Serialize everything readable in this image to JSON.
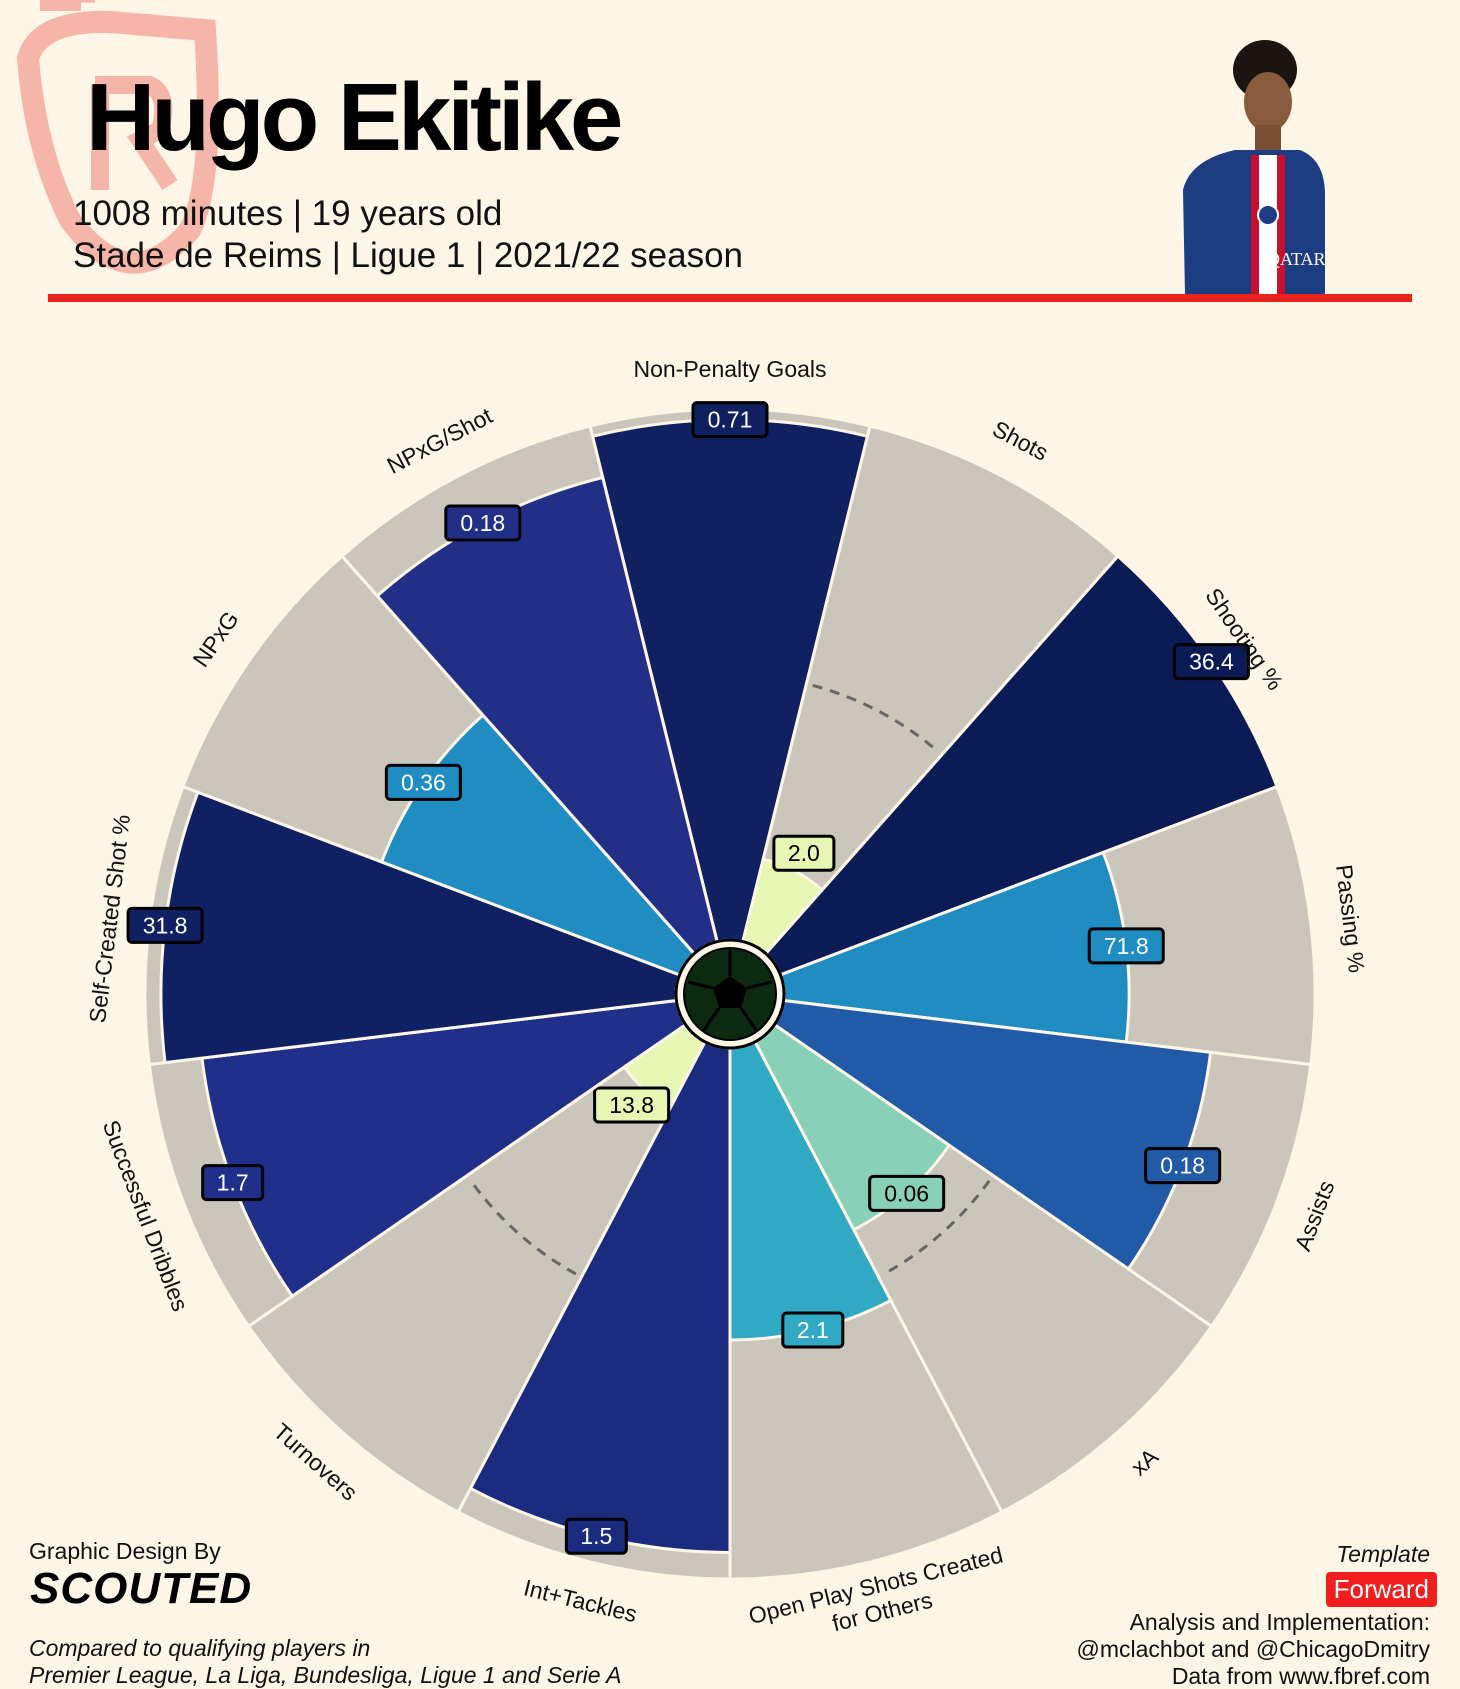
{
  "header": {
    "player_name": "Hugo Ekitike",
    "line1": "1008 minutes | 19 years old",
    "line2": "Stade de Reims | Ligue 1 | 2021/22 season"
  },
  "footer": {
    "design_label": "Graphic Design By",
    "brand": "SCOUTED",
    "compare_line1": "Compared to qualifying players in",
    "compare_line2": "Premier League, La Liga, Bundesliga, Ligue 1 and Serie A",
    "template_label": "Template",
    "template_value": "Forward",
    "analysis_line1": "Analysis and Implementation:",
    "analysis_line2": "@mclachbot and @ChicagoDmitry",
    "analysis_line3": "Data from www.fbref.com"
  },
  "colors": {
    "background": "#fdf5e6",
    "accent_red": "#e8231e",
    "ring_gray": "#cbc6bc"
  },
  "chart_data": {
    "type": "pizza",
    "slices": [
      {
        "label": "Non-Penalty Goals",
        "value": "0.71",
        "percentile": 98,
        "color": "#112060"
      },
      {
        "label": "Shots",
        "value": "2.0",
        "percentile": 16,
        "color": "#e7f6b2"
      },
      {
        "label": "Shooting %",
        "value": "36.4",
        "percentile": 100,
        "color": "#0a1b56"
      },
      {
        "label": "Passing %",
        "value": "71.8",
        "percentile": 65,
        "color": "#1f8dc1"
      },
      {
        "label": "Assists",
        "value": "0.18",
        "percentile": 81,
        "color": "#215aa6"
      },
      {
        "label": "xA",
        "value": "0.06",
        "percentile": 40,
        "color": "#88d1b8"
      },
      {
        "label": "Open Play Shots Created\nfor Others",
        "value": "2.1",
        "percentile": 55,
        "color": "#31a9c4"
      },
      {
        "label": "Int+Tackles",
        "value": "1.5",
        "percentile": 95,
        "color": "#1a2b80"
      },
      {
        "label": "Turnovers",
        "value": "13.8",
        "percentile": 14,
        "color": "#e7f6b2"
      },
      {
        "label": "Successful Dribbles",
        "value": "1.7",
        "percentile": 90,
        "color": "#20308a"
      },
      {
        "label": "Self-Created Shot %",
        "value": "31.8",
        "percentile": 97,
        "color": "#0f2163"
      },
      {
        "label": "NPxG",
        "value": "0.36",
        "percentile": 60,
        "color": "#1f8dc1"
      },
      {
        "label": "NPxG/Shot",
        "value": "0.18",
        "percentile": 90,
        "color": "#212f87"
      }
    ],
    "range": [
      0,
      100
    ],
    "reference_ring": 50
  }
}
